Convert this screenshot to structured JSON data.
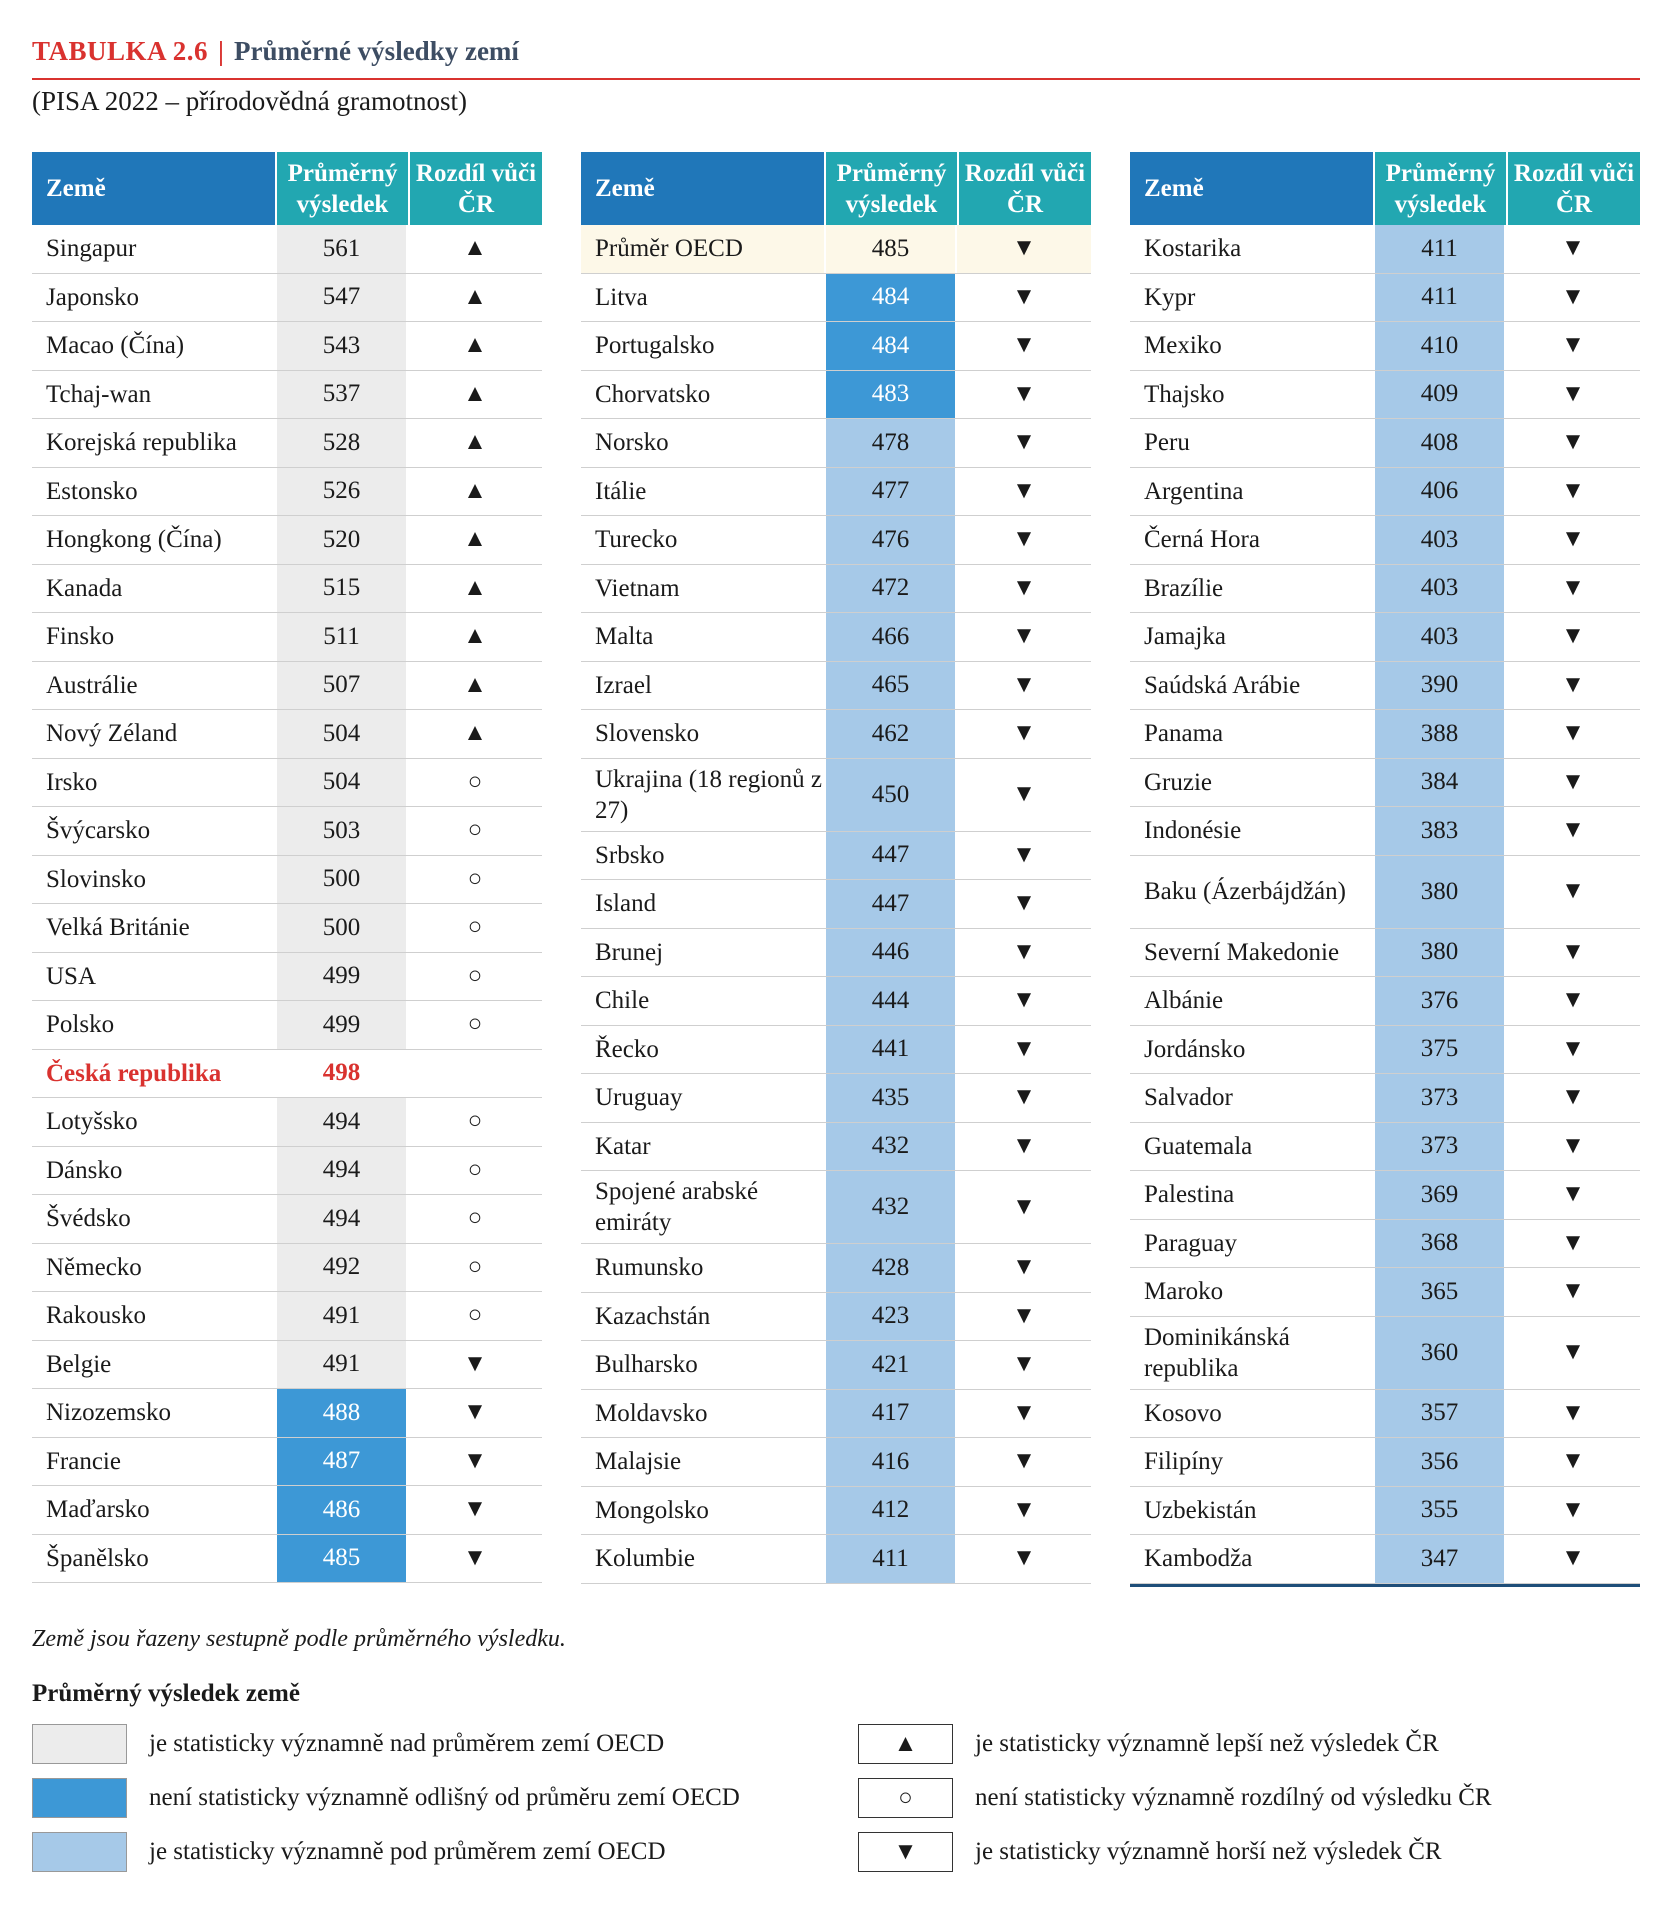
{
  "title": {
    "label": "TABULKA 2.6",
    "separator": "|",
    "text": "Průměrné výsledky zemí"
  },
  "subtitle": "(PISA 2022 – přírodovědná gramotnost)",
  "headers": {
    "country": "Země",
    "score": "Průměrný výsledek",
    "diff": "Rozdíl vůči ČR"
  },
  "symbols": {
    "up": "▲",
    "down": "▼",
    "same": "○"
  },
  "colors": {
    "above": "#ececec",
    "notdiff": "#3d98d6",
    "below": "#a6c9e8",
    "header_country": "#2077b9",
    "header_cols": "#22a7b1",
    "title_red": "#d9322f"
  },
  "columns": [
    [
      {
        "country": "Singapur",
        "score": "561",
        "status": "above",
        "diff": "▲"
      },
      {
        "country": "Japonsko",
        "score": "547",
        "status": "above",
        "diff": "▲"
      },
      {
        "country": "Macao (Čína)",
        "score": "543",
        "status": "above",
        "diff": "▲"
      },
      {
        "country": "Tchaj-wan",
        "score": "537",
        "status": "above",
        "diff": "▲"
      },
      {
        "country": "Korejská republika",
        "score": "528",
        "status": "above",
        "diff": "▲"
      },
      {
        "country": "Estonsko",
        "score": "526",
        "status": "above",
        "diff": "▲"
      },
      {
        "country": "Hongkong (Čína)",
        "score": "520",
        "status": "above",
        "diff": "▲"
      },
      {
        "country": "Kanada",
        "score": "515",
        "status": "above",
        "diff": "▲"
      },
      {
        "country": "Finsko",
        "score": "511",
        "status": "above",
        "diff": "▲"
      },
      {
        "country": "Austrálie",
        "score": "507",
        "status": "above",
        "diff": "▲"
      },
      {
        "country": "Nový Zéland",
        "score": "504",
        "status": "above",
        "diff": "▲"
      },
      {
        "country": "Irsko",
        "score": "504",
        "status": "above",
        "diff": "○"
      },
      {
        "country": "Švýcarsko",
        "score": "503",
        "status": "above",
        "diff": "○"
      },
      {
        "country": "Slovinsko",
        "score": "500",
        "status": "above",
        "diff": "○"
      },
      {
        "country": "Velká Británie",
        "score": "500",
        "status": "above",
        "diff": "○"
      },
      {
        "country": "USA",
        "score": "499",
        "status": "above",
        "diff": "○"
      },
      {
        "country": "Polsko",
        "score": "499",
        "status": "above",
        "diff": "○"
      },
      {
        "country": "Česká republika",
        "score": "498",
        "status": "cz",
        "diff": ""
      },
      {
        "country": "Lotyšsko",
        "score": "494",
        "status": "above",
        "diff": "○"
      },
      {
        "country": "Dánsko",
        "score": "494",
        "status": "above",
        "diff": "○"
      },
      {
        "country": "Švédsko",
        "score": "494",
        "status": "above",
        "diff": "○"
      },
      {
        "country": "Německo",
        "score": "492",
        "status": "above",
        "diff": "○"
      },
      {
        "country": "Rakousko",
        "score": "491",
        "status": "above",
        "diff": "○"
      },
      {
        "country": "Belgie",
        "score": "491",
        "status": "above",
        "diff": "▼"
      },
      {
        "country": "Nizozemsko",
        "score": "488",
        "status": "notdiff",
        "diff": "▼"
      },
      {
        "country": "Francie",
        "score": "487",
        "status": "notdiff",
        "diff": "▼"
      },
      {
        "country": "Maďarsko",
        "score": "486",
        "status": "notdiff",
        "diff": "▼"
      },
      {
        "country": "Španělsko",
        "score": "485",
        "status": "notdiff",
        "diff": "▼"
      }
    ],
    [
      {
        "country": "Průměr OECD",
        "score": "485",
        "status": "oecd",
        "diff": "▼"
      },
      {
        "country": "Litva",
        "score": "484",
        "status": "notdiff",
        "diff": "▼"
      },
      {
        "country": "Portugalsko",
        "score": "484",
        "status": "notdiff",
        "diff": "▼"
      },
      {
        "country": "Chorvatsko",
        "score": "483",
        "status": "notdiff",
        "diff": "▼"
      },
      {
        "country": "Norsko",
        "score": "478",
        "status": "below",
        "diff": "▼"
      },
      {
        "country": "Itálie",
        "score": "477",
        "status": "below",
        "diff": "▼"
      },
      {
        "country": "Turecko",
        "score": "476",
        "status": "below",
        "diff": "▼"
      },
      {
        "country": "Vietnam",
        "score": "472",
        "status": "below",
        "diff": "▼"
      },
      {
        "country": "Malta",
        "score": "466",
        "status": "below",
        "diff": "▼"
      },
      {
        "country": "Izrael",
        "score": "465",
        "status": "below",
        "diff": "▼"
      },
      {
        "country": "Slovensko",
        "score": "462",
        "status": "below",
        "diff": "▼"
      },
      {
        "country": "Ukrajina (18 regionů z 27)",
        "score": "450",
        "status": "below",
        "diff": "▼",
        "tall": true
      },
      {
        "country": "Srbsko",
        "score": "447",
        "status": "below",
        "diff": "▼"
      },
      {
        "country": "Island",
        "score": "447",
        "status": "below",
        "diff": "▼"
      },
      {
        "country": "Brunej",
        "score": "446",
        "status": "below",
        "diff": "▼"
      },
      {
        "country": "Chile",
        "score": "444",
        "status": "below",
        "diff": "▼"
      },
      {
        "country": "Řecko",
        "score": "441",
        "status": "below",
        "diff": "▼"
      },
      {
        "country": "Uruguay",
        "score": "435",
        "status": "below",
        "diff": "▼"
      },
      {
        "country": "Katar",
        "score": "432",
        "status": "below",
        "diff": "▼"
      },
      {
        "country": "Spojené arabské emiráty",
        "score": "432",
        "status": "below",
        "diff": "▼",
        "tall": true
      },
      {
        "country": "Rumunsko",
        "score": "428",
        "status": "below",
        "diff": "▼"
      },
      {
        "country": "Kazachstán",
        "score": "423",
        "status": "below",
        "diff": "▼"
      },
      {
        "country": "Bulharsko",
        "score": "421",
        "status": "below",
        "diff": "▼"
      },
      {
        "country": "Moldavsko",
        "score": "417",
        "status": "below",
        "diff": "▼"
      },
      {
        "country": "Malajsie",
        "score": "416",
        "status": "below",
        "diff": "▼"
      },
      {
        "country": "Mongolsko",
        "score": "412",
        "status": "below",
        "diff": "▼"
      },
      {
        "country": "Kolumbie",
        "score": "411",
        "status": "below",
        "diff": "▼"
      }
    ],
    [
      {
        "country": "Kostarika",
        "score": "411",
        "status": "below",
        "diff": "▼"
      },
      {
        "country": "Kypr",
        "score": "411",
        "status": "below",
        "diff": "▼"
      },
      {
        "country": "Mexiko",
        "score": "410",
        "status": "below",
        "diff": "▼"
      },
      {
        "country": "Thajsko",
        "score": "409",
        "status": "below",
        "diff": "▼"
      },
      {
        "country": "Peru",
        "score": "408",
        "status": "below",
        "diff": "▼"
      },
      {
        "country": "Argentina",
        "score": "406",
        "status": "below",
        "diff": "▼"
      },
      {
        "country": "Černá Hora",
        "score": "403",
        "status": "below",
        "diff": "▼"
      },
      {
        "country": "Brazílie",
        "score": "403",
        "status": "below",
        "diff": "▼"
      },
      {
        "country": "Jamajka",
        "score": "403",
        "status": "below",
        "diff": "▼"
      },
      {
        "country": "Saúdská Arábie",
        "score": "390",
        "status": "below",
        "diff": "▼"
      },
      {
        "country": "Panama",
        "score": "388",
        "status": "below",
        "diff": "▼"
      },
      {
        "country": "Gruzie",
        "score": "384",
        "status": "below",
        "diff": "▼"
      },
      {
        "country": "Indonésie",
        "score": "383",
        "status": "below",
        "diff": "▼"
      },
      {
        "country": "Baku (Ázerbájdžán)",
        "score": "380",
        "status": "below",
        "diff": "▼",
        "tall": true
      },
      {
        "country": "Severní Makedonie",
        "score": "380",
        "status": "below",
        "diff": "▼"
      },
      {
        "country": "Albánie",
        "score": "376",
        "status": "below",
        "diff": "▼"
      },
      {
        "country": "Jordánsko",
        "score": "375",
        "status": "below",
        "diff": "▼"
      },
      {
        "country": "Salvador",
        "score": "373",
        "status": "below",
        "diff": "▼"
      },
      {
        "country": "Guatemala",
        "score": "373",
        "status": "below",
        "diff": "▼"
      },
      {
        "country": "Palestina",
        "score": "369",
        "status": "below",
        "diff": "▼"
      },
      {
        "country": "Paraguay",
        "score": "368",
        "status": "below",
        "diff": "▼"
      },
      {
        "country": "Maroko",
        "score": "365",
        "status": "below",
        "diff": "▼"
      },
      {
        "country": "Dominikánská republika",
        "score": "360",
        "status": "below",
        "diff": "▼",
        "tall": true
      },
      {
        "country": "Kosovo",
        "score": "357",
        "status": "below",
        "diff": "▼"
      },
      {
        "country": "Filipíny",
        "score": "356",
        "status": "below",
        "diff": "▼"
      },
      {
        "country": "Uzbekistán",
        "score": "355",
        "status": "below",
        "diff": "▼"
      },
      {
        "country": "Kambodža",
        "score": "347",
        "status": "below",
        "diff": "▼"
      }
    ]
  ],
  "note": "Země jsou řazeny sestupně podle průměrného výsledku.",
  "legend": {
    "title": "Průměrný výsledek země",
    "colors": [
      {
        "text": "je statisticky významně nad průměrem zemí OECD"
      },
      {
        "text": "není statisticky významně odlišný od průměru zemí OECD"
      },
      {
        "text": "je statisticky významně pod průměrem zemí OECD"
      }
    ],
    "symbols": [
      {
        "symbol": "▲",
        "text": "je statisticky významně lepší než výsledek ČR"
      },
      {
        "symbol": "○",
        "text": "není statisticky významně rozdílný od výsledku ČR"
      },
      {
        "symbol": "▼",
        "text": "je statisticky významně horší než výsledek ČR"
      }
    ]
  }
}
